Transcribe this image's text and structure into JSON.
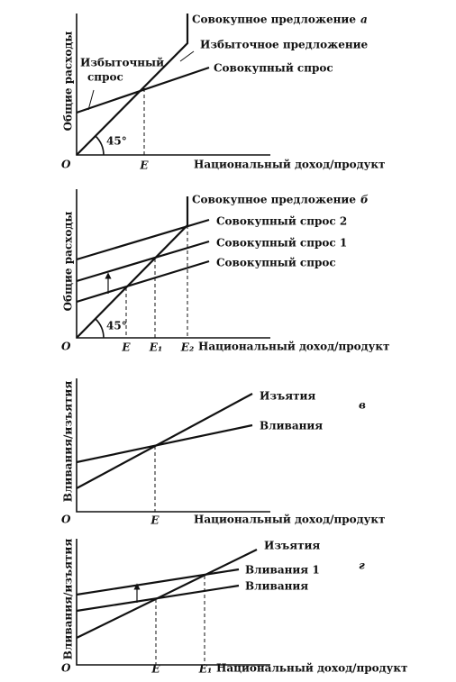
{
  "panels": [
    {
      "letter": "а",
      "y_label": "Общие расходы",
      "x_label": "Национальный доход/продукт",
      "origin": "O",
      "points": [
        "E"
      ],
      "labels": [
        "Совокупное предложение",
        "Избыточное предложение",
        "Совокупный спрос",
        "Избыточный",
        "спрос"
      ],
      "angle": "45°"
    },
    {
      "letter": "б",
      "y_label": "Общие расходы",
      "x_label": "Национальный доход/продукт",
      "origin": "O",
      "points": [
        "E",
        "E₁",
        "E₂"
      ],
      "labels": [
        "Совокупное предложение",
        "Совокупный спрос 2",
        "Совокупный спрос 1",
        "Совокупный спрос"
      ],
      "angle": "45°"
    },
    {
      "letter": "в",
      "y_label": "Вливания/изъятия",
      "x_label": "Национальный доход/продукт",
      "origin": "O",
      "points": [
        "E"
      ],
      "labels": [
        "Изъятия",
        "Вливания"
      ]
    },
    {
      "letter": "г",
      "y_label": "Вливания/изъятия",
      "x_label": "Национальный доход/продукт",
      "origin": "O",
      "points": [
        "E",
        "E₁"
      ],
      "labels": [
        "Изъятия",
        "Вливания 1",
        "Вливания"
      ]
    }
  ]
}
